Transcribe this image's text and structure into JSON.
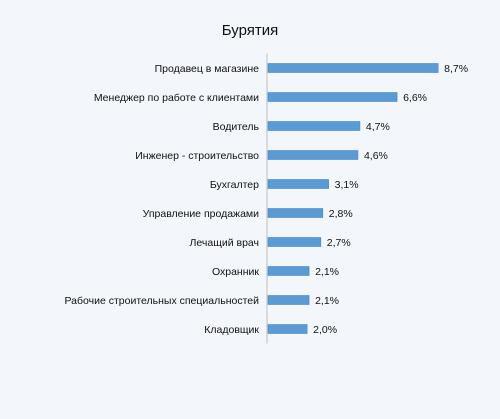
{
  "chart_data": {
    "type": "bar",
    "orientation": "horizontal",
    "title": "Бурятия",
    "categories": [
      "Продавец в магазине",
      "Менеджер по работе с клиентами",
      "Водитель",
      "Инженер - строительство",
      "Бухгалтер",
      "Управление продажами",
      "Лечащий врач",
      "Охранник",
      "Рабочие строительных специальностей",
      "Кладовщик"
    ],
    "values": [
      8.7,
      6.6,
      4.7,
      4.6,
      3.1,
      2.8,
      2.7,
      2.1,
      2.1,
      2.0
    ],
    "value_labels": [
      "8,7%",
      "6,6%",
      "4,7%",
      "4,6%",
      "3,1%",
      "2,8%",
      "2,7%",
      "2,1%",
      "2,1%",
      "2,0%"
    ],
    "xlim": [
      0,
      9
    ],
    "grid": false,
    "legend": "none",
    "bar_color": "#5b9bd5",
    "axis_color": "#bfbfbf"
  }
}
